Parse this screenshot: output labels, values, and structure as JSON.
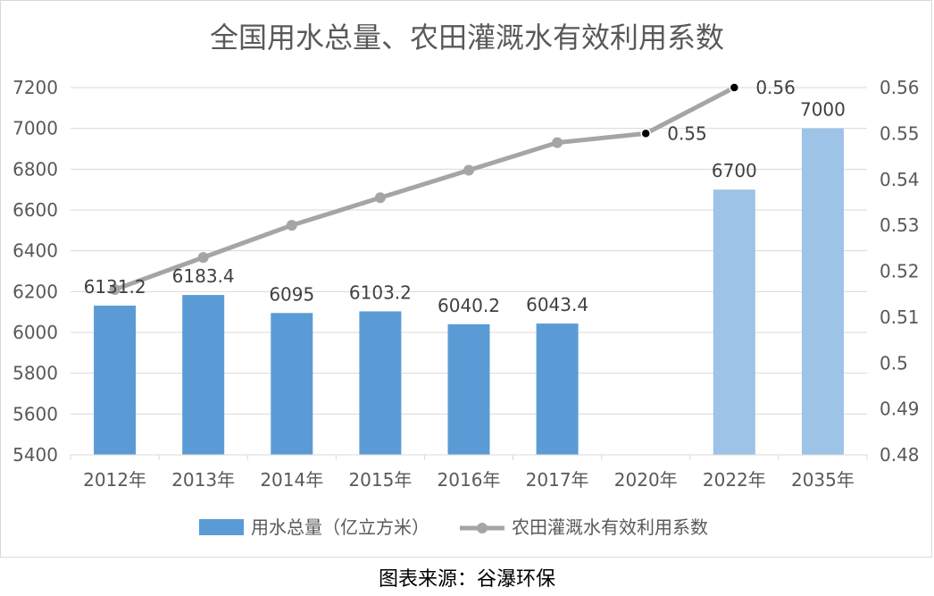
{
  "chart_data": {
    "type": "bar+line",
    "title": "全国用水总量、农田灌溉水有效利用系数",
    "categories": [
      "2012年",
      "2013年",
      "2014年",
      "2015年",
      "2016年",
      "2017年",
      "2020年",
      "2022年",
      "2035年"
    ],
    "series": [
      {
        "name": "用水总量（亿立方米）",
        "type": "bar",
        "axis": "left",
        "values": [
          6131.2,
          6183.4,
          6095,
          6103.2,
          6040.2,
          6043.4,
          null,
          6700,
          7000
        ],
        "data_labels": [
          "6131.2",
          "6183.4",
          "6095",
          "6103.2",
          "6040.2",
          "6043.4",
          "",
          "6700",
          "7000"
        ],
        "colors": [
          "#5b9bd5",
          "#5b9bd5",
          "#5b9bd5",
          "#5b9bd5",
          "#5b9bd5",
          "#5b9bd5",
          "",
          "#9dc3e6",
          "#9dc3e6"
        ]
      },
      {
        "name": "农田灌溉水有效利用系数",
        "type": "line",
        "axis": "right",
        "color": "#a5a5a5",
        "values": [
          0.516,
          0.523,
          0.53,
          0.536,
          0.542,
          0.548,
          0.55,
          0.56,
          null
        ],
        "highlight_markers": [
          false,
          false,
          false,
          false,
          false,
          false,
          true,
          true,
          false
        ],
        "data_labels": [
          "",
          "",
          "",
          "",
          "",
          "",
          "0.55",
          "0.56",
          ""
        ]
      }
    ],
    "y_left": {
      "min": 5400,
      "max": 7200,
      "step": 200,
      "ticks": [
        "5400",
        "5600",
        "5800",
        "6000",
        "6200",
        "6400",
        "6600",
        "6800",
        "7000",
        "7200"
      ]
    },
    "y_right": {
      "min": 0.48,
      "max": 0.56,
      "step": 0.01,
      "ticks": [
        "0.48",
        "0.49",
        "0.5",
        "0.51",
        "0.52",
        "0.53",
        "0.54",
        "0.55",
        "0.56"
      ]
    },
    "grid": true,
    "legend_position": "bottom"
  },
  "source": "图表来源：谷瀑环保"
}
